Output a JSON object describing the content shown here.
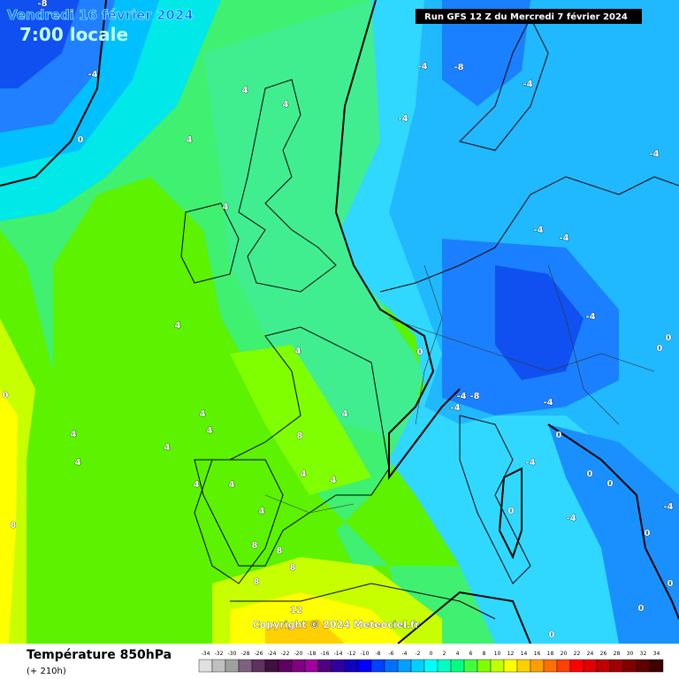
{
  "header": {
    "date": "Vendredi 16 février 2024",
    "time": "7:00 locale",
    "run": "Run GFS 12 Z du Mercredi 7 février 2024"
  },
  "copyright": "Copyright © 2024 Meteociel.fr",
  "footer": {
    "title": "Température 850hPa",
    "lead": "(+ 210h)"
  },
  "scale": {
    "values": [
      -34,
      -32,
      -30,
      -28,
      -26,
      -24,
      -22,
      -20,
      -18,
      -16,
      -14,
      -12,
      -10,
      -8,
      -6,
      -4,
      -2,
      0,
      2,
      4,
      6,
      8,
      10,
      12,
      14,
      16,
      18,
      20,
      22,
      24,
      26,
      28,
      30,
      32,
      34
    ],
    "colors": [
      "#e0e0e0",
      "#c0c0c0",
      "#a0a0a0",
      "#806080",
      "#603060",
      "#401040",
      "#600060",
      "#800080",
      "#a000a0",
      "#500080",
      "#3000a0",
      "#1000c0",
      "#0000ff",
      "#0040ff",
      "#0070ff",
      "#00a0ff",
      "#00d0ff",
      "#00ffff",
      "#00ffc0",
      "#00ff80",
      "#40ff40",
      "#80ff00",
      "#c0ff00",
      "#ffff00",
      "#ffd000",
      "#ffa000",
      "#ff7000",
      "#ff4000",
      "#ff0000",
      "#e00000",
      "#c00000",
      "#a00000",
      "#800000",
      "#600000",
      "#400000"
    ]
  },
  "contour_labels": [
    -8,
    -4,
    0,
    4,
    4,
    4,
    4,
    4,
    4,
    4,
    4,
    4,
    8,
    4,
    4,
    4,
    4,
    4,
    4,
    4,
    4,
    8,
    8,
    8,
    8,
    12,
    8,
    0,
    -4,
    -8,
    -4,
    -4,
    -4,
    -4,
    -4,
    -4,
    0,
    0,
    0,
    -4,
    -8,
    -4,
    -4,
    0,
    -4,
    0,
    0,
    0,
    -4,
    -4,
    0,
    0,
    0,
    0
  ]
}
